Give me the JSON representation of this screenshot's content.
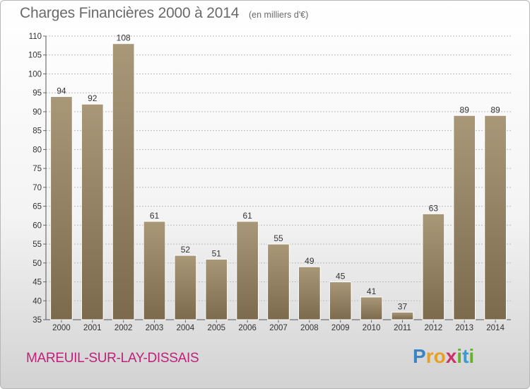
{
  "header": {
    "title": "Charges Financières 2000 à 2014",
    "subtitle": "(en milliers d'€)"
  },
  "footer": {
    "town": "MAREUIL-SUR-LAY-DISSAIS",
    "logo_letters": [
      "P",
      "r",
      "o",
      "x",
      "i",
      "t",
      "i"
    ],
    "logo_colors": [
      "#3a84c4",
      "#e8a020",
      "#e8a020",
      "#d0306a",
      "#68b030",
      "#3a9ad4",
      "#68b030"
    ]
  },
  "colors": {
    "bar_top": "#a89878",
    "bar_bottom": "#7c6a4c",
    "grid": "#bcbcbc",
    "text": "#333333"
  },
  "chart_data": {
    "type": "bar",
    "title": "Charges Financières 2000 à 2014",
    "subtitle": "(en milliers d'€)",
    "categories": [
      "2000",
      "2001",
      "2002",
      "2003",
      "2004",
      "2005",
      "2006",
      "2007",
      "2008",
      "2009",
      "2010",
      "2011",
      "2012",
      "2013",
      "2014"
    ],
    "values": [
      94,
      92,
      108,
      61,
      52,
      51,
      61,
      55,
      49,
      45,
      41,
      37,
      63,
      89,
      89
    ],
    "ylim": [
      35,
      110
    ],
    "yticks": [
      35,
      40,
      45,
      50,
      55,
      60,
      65,
      70,
      75,
      80,
      85,
      90,
      95,
      100,
      105,
      110
    ],
    "grid": true,
    "xlabel": "",
    "ylabel": ""
  }
}
